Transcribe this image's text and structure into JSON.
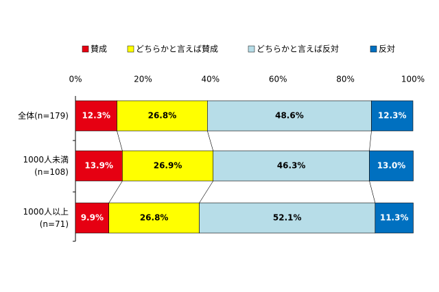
{
  "chart_data": {
    "type": "stacked-bar-horizontal",
    "categories": [
      [
        "全体(n=179)"
      ],
      [
        "1000人未満",
        "(n=108)"
      ],
      [
        "1000人以上",
        "(n=71)"
      ]
    ],
    "series": [
      {
        "name": "賛成",
        "color": "#e60012",
        "label_color": "#ffffff",
        "values": [
          12.3,
          13.9,
          9.9
        ],
        "value_labels": [
          "12.3%",
          "13.9%",
          "9.9%"
        ]
      },
      {
        "name": "どちらかと言えば賛成",
        "color": "#ffff00",
        "label_color": "#000000",
        "values": [
          26.8,
          26.9,
          26.8
        ],
        "value_labels": [
          "26.8%",
          "26.9%",
          "26.8%"
        ]
      },
      {
        "name": "どちらかと言えば反対",
        "color": "#b7dde8",
        "label_color": "#000000",
        "values": [
          48.6,
          46.3,
          52.1
        ],
        "value_labels": [
          "48.6%",
          "46.3%",
          "52.1%"
        ]
      },
      {
        "name": "反対",
        "color": "#0070c0",
        "label_color": "#ffffff",
        "values": [
          12.3,
          13.0,
          11.3
        ],
        "value_labels": [
          "12.3%",
          "13.0%",
          "11.3%"
        ]
      }
    ],
    "xlim": [
      0,
      100
    ],
    "xticks": [
      {
        "value": 0,
        "label": "0%"
      },
      {
        "value": 20,
        "label": "20%"
      },
      {
        "value": 40,
        "label": "40%"
      },
      {
        "value": 60,
        "label": "60%"
      },
      {
        "value": 80,
        "label": "80%"
      },
      {
        "value": 100,
        "label": "100%"
      }
    ],
    "legend": "top"
  }
}
